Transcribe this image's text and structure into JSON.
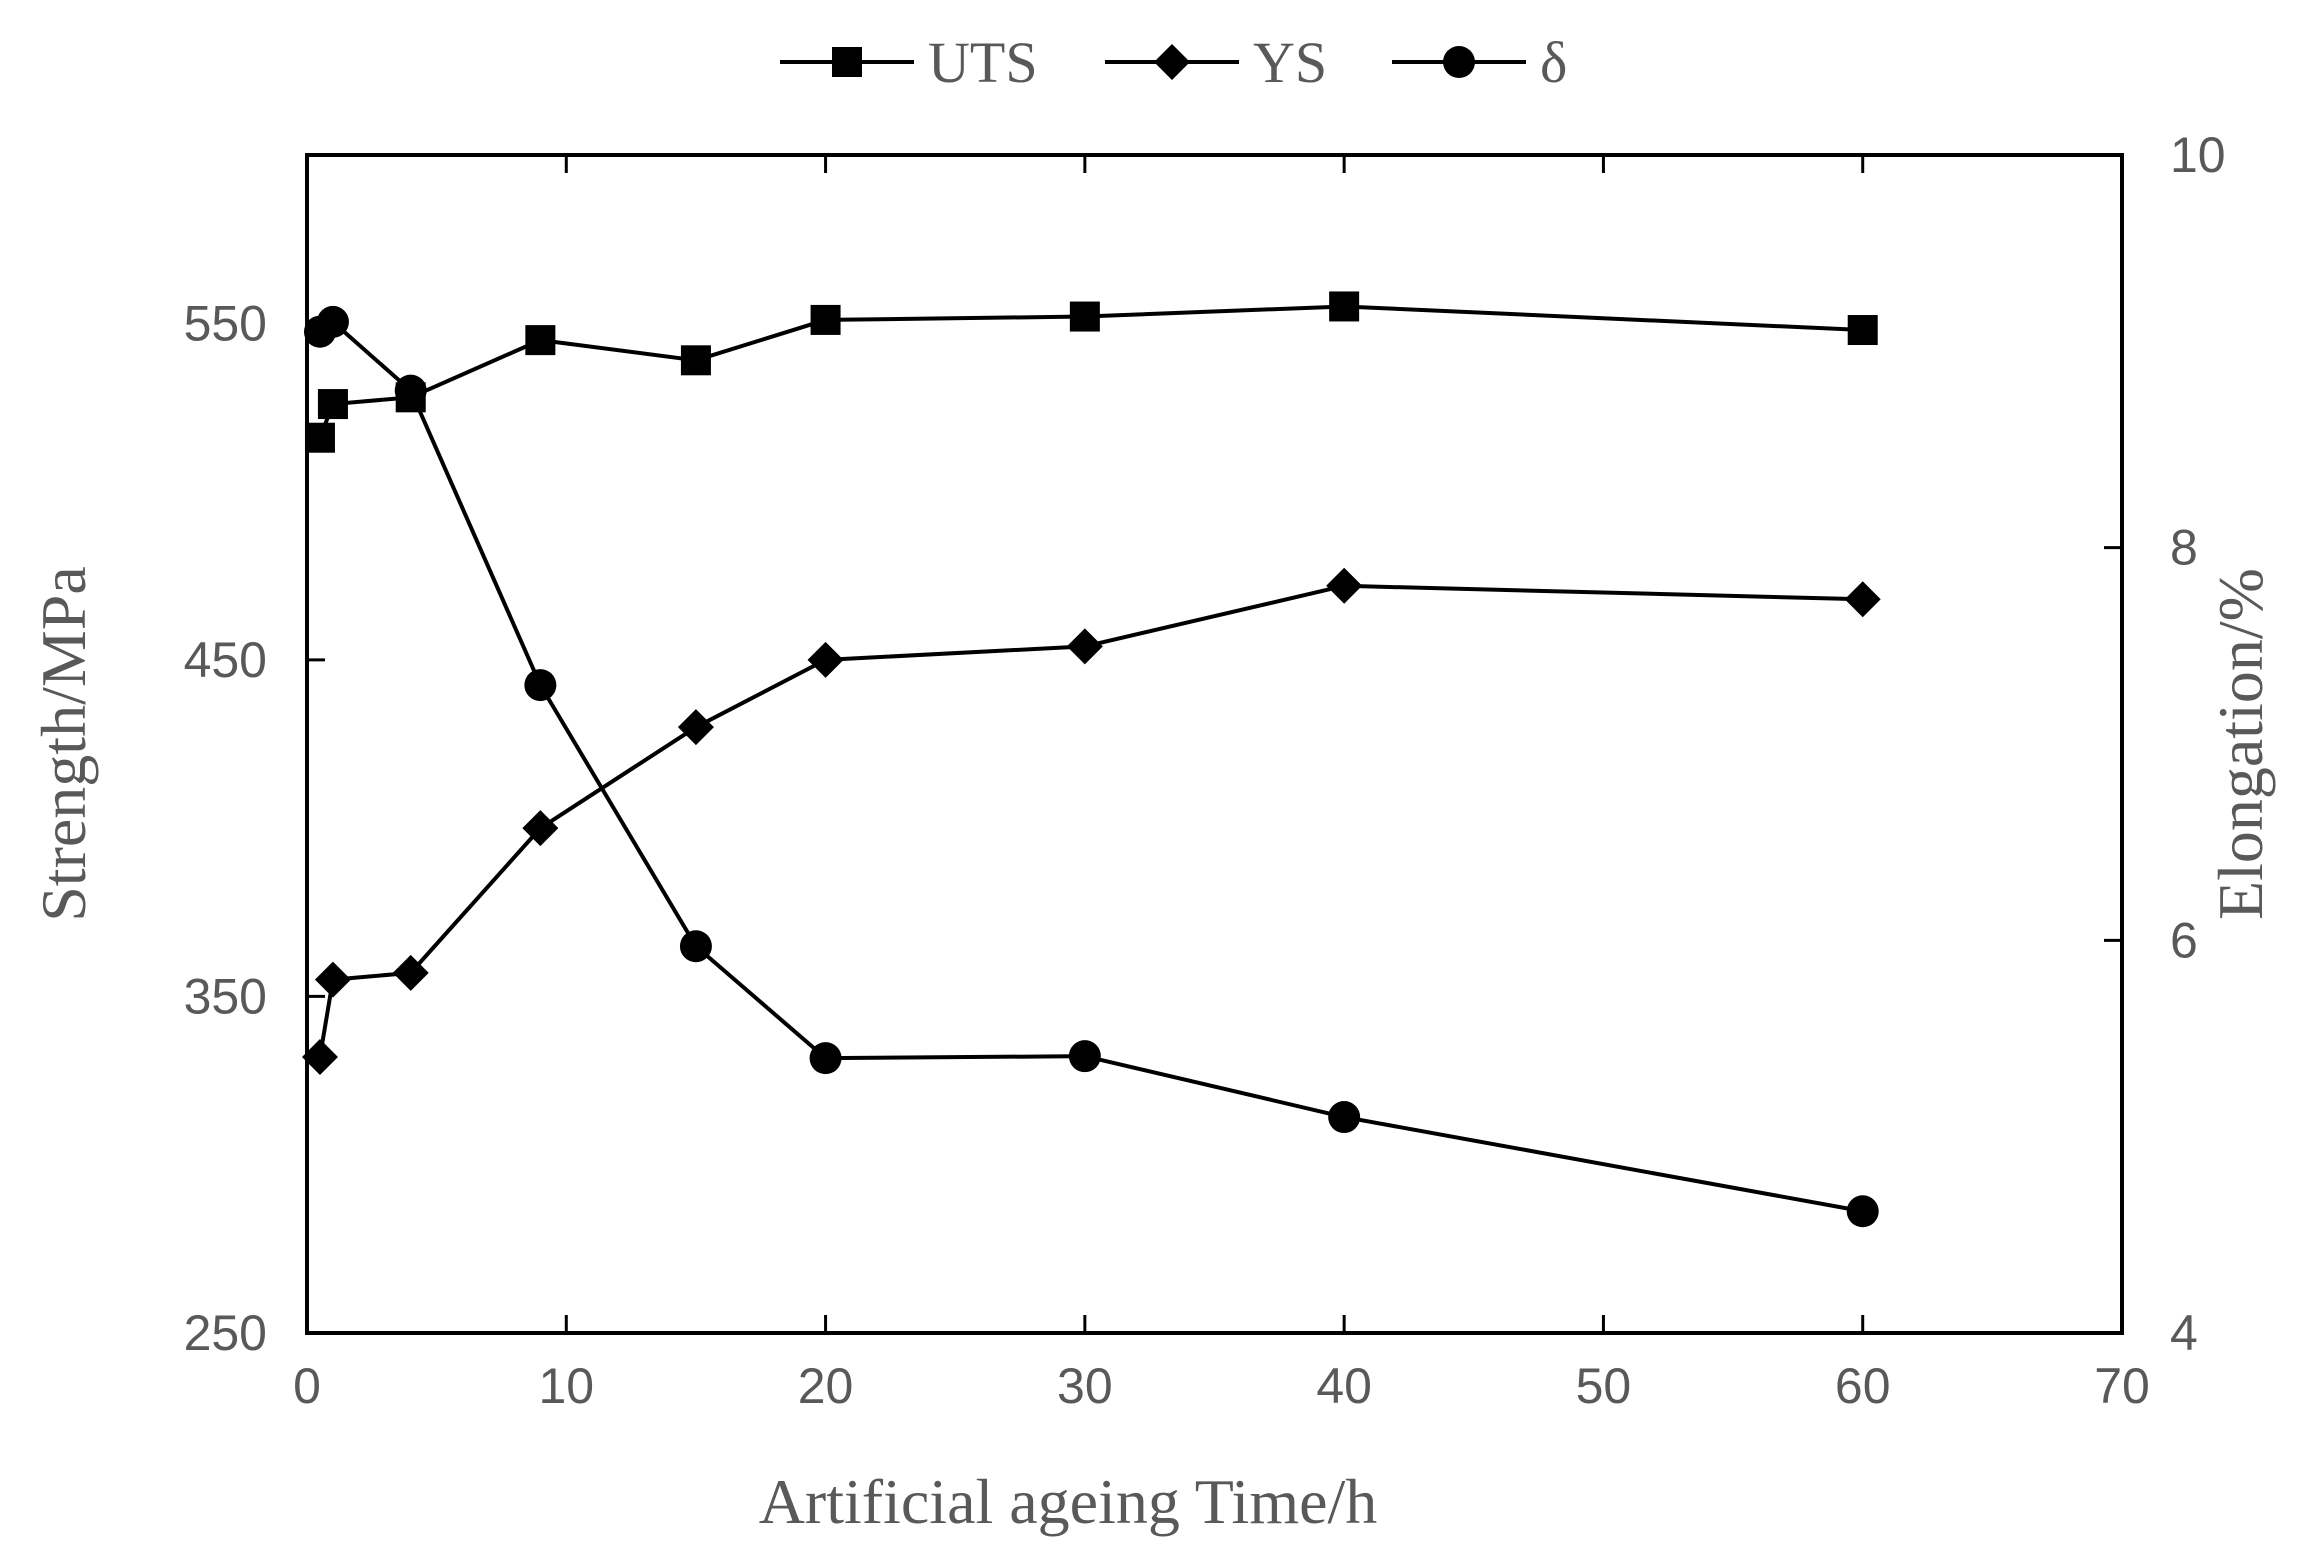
{
  "chart_data": {
    "type": "line",
    "xlabel": "Artificial ageing Time/h",
    "ylabel": "Strength/MPa",
    "y2label": "Elongation/%",
    "xlim": [
      0,
      70
    ],
    "ylim": [
      250,
      600
    ],
    "y2lim": [
      4,
      10
    ],
    "x_ticks": [
      "0",
      "10",
      "20",
      "30",
      "40",
      "50",
      "60",
      "70"
    ],
    "y_ticks": [
      "250",
      "350",
      "450",
      "550"
    ],
    "y2_ticks": [
      "4",
      "6",
      "8",
      "10"
    ],
    "legend_position": "top-center",
    "grid": false,
    "series": [
      {
        "name": "UTS",
        "axis": "left",
        "marker": "square",
        "color": "#000000",
        "x": [
          0.5,
          1,
          4,
          9,
          15,
          20,
          30,
          40,
          60
        ],
        "y": [
          516,
          526,
          528,
          545,
          539,
          551,
          552,
          555,
          548
        ]
      },
      {
        "name": "YS",
        "axis": "left",
        "marker": "diamond",
        "color": "#000000",
        "x": [
          0.5,
          1,
          4,
          9,
          15,
          20,
          30,
          40,
          60
        ],
        "y": [
          332,
          355,
          357,
          400,
          430,
          450,
          454,
          472,
          468
        ]
      },
      {
        "name": "δ",
        "axis": "right",
        "marker": "circle",
        "color": "#000000",
        "x": [
          0.5,
          1,
          4,
          9,
          15,
          20,
          30,
          40,
          60
        ],
        "y": [
          9.1,
          9.15,
          8.8,
          7.3,
          5.97,
          5.4,
          5.41,
          5.1,
          4.62
        ]
      }
    ]
  }
}
